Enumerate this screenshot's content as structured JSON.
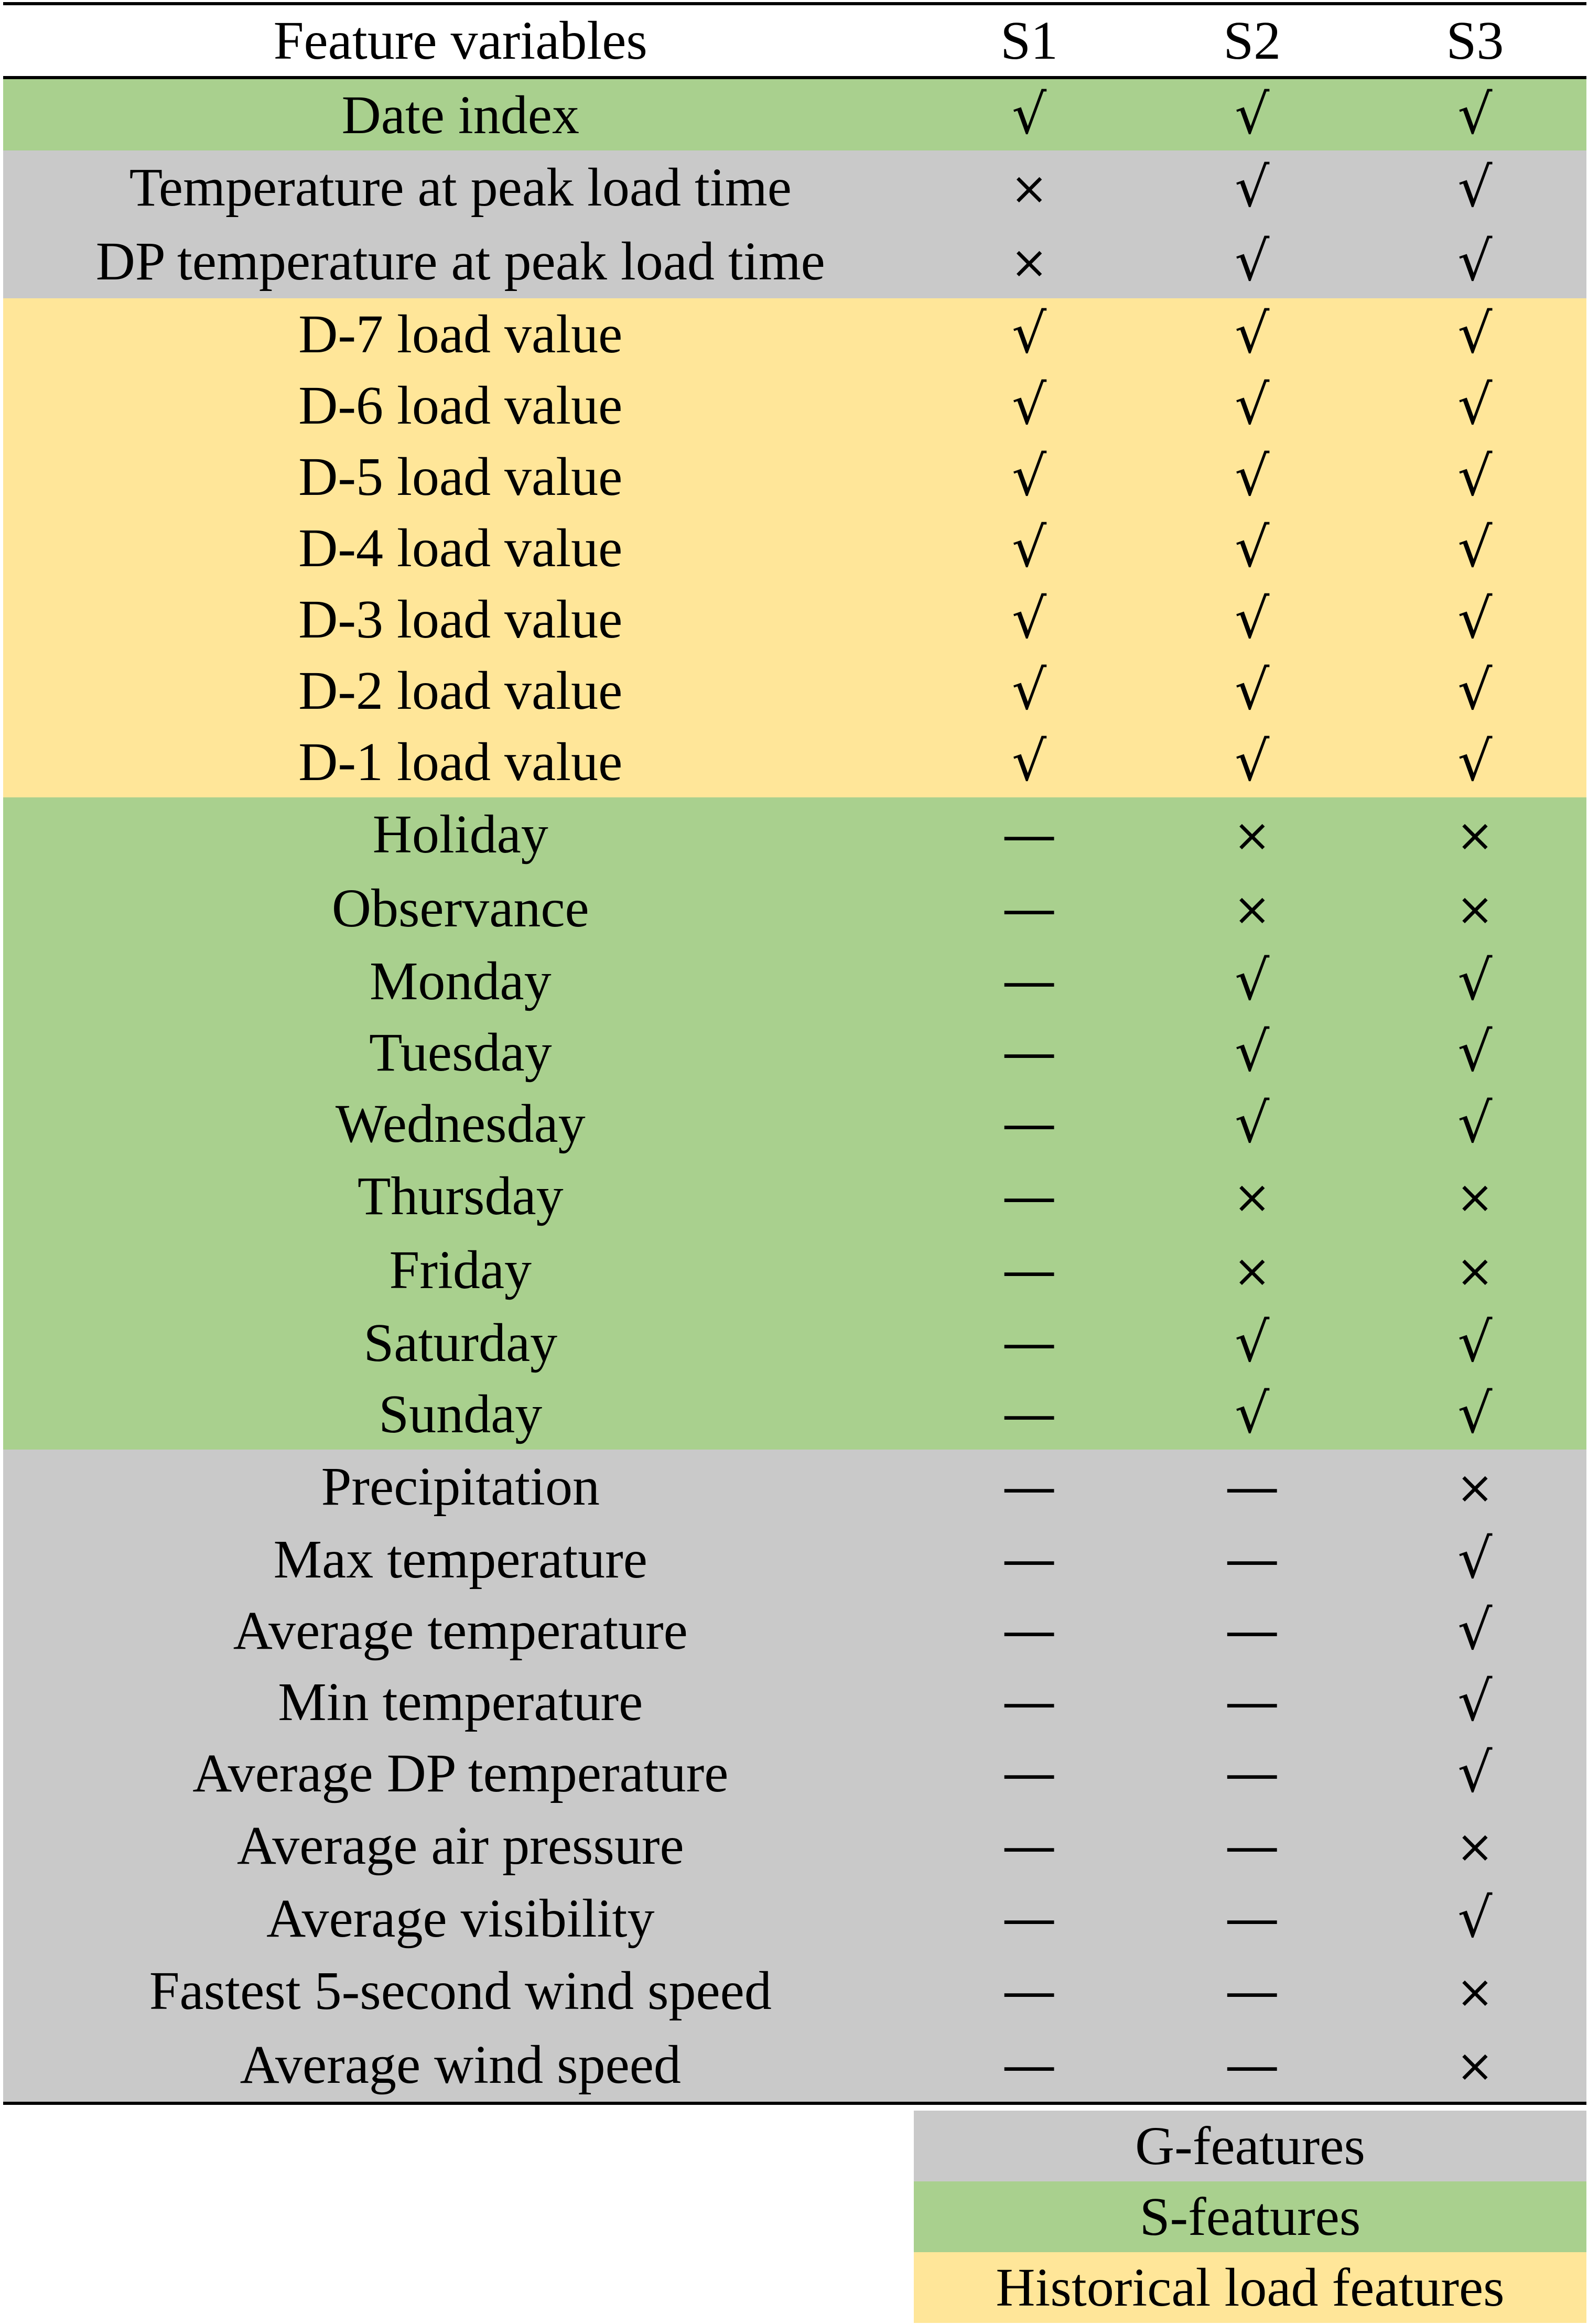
{
  "colors": {
    "g_features": "#c9c9c9",
    "s_features": "#a9d08e",
    "historical_load_features": "#ffe699"
  },
  "symbols": {
    "yes": "√",
    "no": "×",
    "na": "—"
  },
  "table": {
    "headers": [
      "Feature variables",
      "S1",
      "S2",
      "S3"
    ],
    "rows": [
      {
        "feature": "Date index",
        "group": "s_features",
        "s1": "yes",
        "s2": "yes",
        "s3": "yes"
      },
      {
        "feature": "Temperature at peak load time",
        "group": "g_features",
        "s1": "no",
        "s2": "yes",
        "s3": "yes"
      },
      {
        "feature": "DP temperature at peak load time",
        "group": "g_features",
        "s1": "no",
        "s2": "yes",
        "s3": "yes"
      },
      {
        "feature": "D-7 load value",
        "group": "historical_load_features",
        "s1": "yes",
        "s2": "yes",
        "s3": "yes"
      },
      {
        "feature": "D-6 load value",
        "group": "historical_load_features",
        "s1": "yes",
        "s2": "yes",
        "s3": "yes"
      },
      {
        "feature": "D-5 load value",
        "group": "historical_load_features",
        "s1": "yes",
        "s2": "yes",
        "s3": "yes"
      },
      {
        "feature": "D-4 load value",
        "group": "historical_load_features",
        "s1": "yes",
        "s2": "yes",
        "s3": "yes"
      },
      {
        "feature": "D-3 load value",
        "group": "historical_load_features",
        "s1": "yes",
        "s2": "yes",
        "s3": "yes"
      },
      {
        "feature": "D-2 load value",
        "group": "historical_load_features",
        "s1": "yes",
        "s2": "yes",
        "s3": "yes"
      },
      {
        "feature": "D-1 load value",
        "group": "historical_load_features",
        "s1": "yes",
        "s2": "yes",
        "s3": "yes"
      },
      {
        "feature": "Holiday",
        "group": "s_features",
        "s1": "na",
        "s2": "no",
        "s3": "no"
      },
      {
        "feature": "Observance",
        "group": "s_features",
        "s1": "na",
        "s2": "no",
        "s3": "no"
      },
      {
        "feature": "Monday",
        "group": "s_features",
        "s1": "na",
        "s2": "yes",
        "s3": "yes"
      },
      {
        "feature": "Tuesday",
        "group": "s_features",
        "s1": "na",
        "s2": "yes",
        "s3": "yes"
      },
      {
        "feature": "Wednesday",
        "group": "s_features",
        "s1": "na",
        "s2": "yes",
        "s3": "yes"
      },
      {
        "feature": "Thursday",
        "group": "s_features",
        "s1": "na",
        "s2": "no",
        "s3": "no"
      },
      {
        "feature": "Friday",
        "group": "s_features",
        "s1": "na",
        "s2": "no",
        "s3": "no"
      },
      {
        "feature": "Saturday",
        "group": "s_features",
        "s1": "na",
        "s2": "yes",
        "s3": "yes"
      },
      {
        "feature": "Sunday",
        "group": "s_features",
        "s1": "na",
        "s2": "yes",
        "s3": "yes"
      },
      {
        "feature": "Precipitation",
        "group": "g_features",
        "s1": "na",
        "s2": "na",
        "s3": "no"
      },
      {
        "feature": "Max temperature",
        "group": "g_features",
        "s1": "na",
        "s2": "na",
        "s3": "yes"
      },
      {
        "feature": "Average temperature",
        "group": "g_features",
        "s1": "na",
        "s2": "na",
        "s3": "yes"
      },
      {
        "feature": "Min temperature",
        "group": "g_features",
        "s1": "na",
        "s2": "na",
        "s3": "yes"
      },
      {
        "feature": "Average DP temperature",
        "group": "g_features",
        "s1": "na",
        "s2": "na",
        "s3": "yes"
      },
      {
        "feature": "Average air pressure",
        "group": "g_features",
        "s1": "na",
        "s2": "na",
        "s3": "no"
      },
      {
        "feature": "Average visibility",
        "group": "g_features",
        "s1": "na",
        "s2": "na",
        "s3": "yes"
      },
      {
        "feature": "Fastest 5-second wind speed",
        "group": "g_features",
        "s1": "na",
        "s2": "na",
        "s3": "no"
      },
      {
        "feature": "Average wind speed",
        "group": "g_features",
        "s1": "na",
        "s2": "na",
        "s3": "no"
      }
    ]
  },
  "legend": [
    {
      "label": "G-features",
      "group": "g_features"
    },
    {
      "label": "S-features",
      "group": "s_features"
    },
    {
      "label": "Historical load features",
      "group": "historical_load_features"
    }
  ]
}
